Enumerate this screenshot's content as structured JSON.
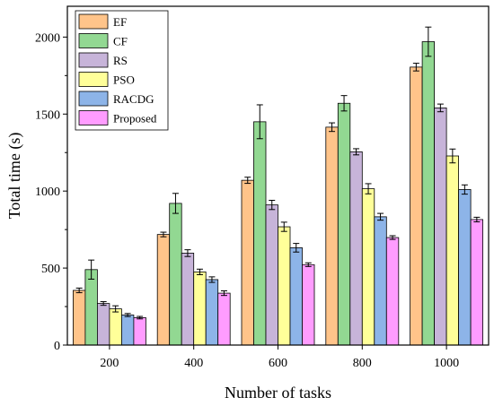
{
  "chart_data": {
    "type": "bar",
    "title": "",
    "xlabel": "Number of tasks",
    "ylabel": "Total time (s)",
    "ylim": [
      0,
      2200
    ],
    "yticks": [
      0,
      500,
      1000,
      1500,
      2000
    ],
    "categories": [
      "200",
      "400",
      "600",
      "800",
      "1000"
    ],
    "grid": false,
    "legend_position": "top-left",
    "series": [
      {
        "name": "EF",
        "color": "#FFC48A",
        "values": [
          355,
          718,
          1070,
          1415,
          1805
        ],
        "errors": [
          15,
          15,
          20,
          28,
          25
        ]
      },
      {
        "name": "CF",
        "color": "#92D892",
        "values": [
          490,
          920,
          1450,
          1570,
          1970
        ],
        "errors": [
          62,
          65,
          110,
          50,
          95
        ]
      },
      {
        "name": "RS",
        "color": "#C7B4D9",
        "values": [
          270,
          597,
          910,
          1255,
          1540
        ],
        "errors": [
          12,
          22,
          30,
          20,
          25
        ]
      },
      {
        "name": "PSO",
        "color": "#FFFF99",
        "values": [
          235,
          475,
          768,
          1015,
          1228
        ],
        "errors": [
          20,
          18,
          30,
          33,
          45
        ]
      },
      {
        "name": "RACDG",
        "color": "#8DB4E8",
        "values": [
          195,
          425,
          632,
          833,
          1010
        ],
        "errors": [
          10,
          18,
          28,
          22,
          30
        ]
      },
      {
        "name": "Proposed",
        "color": "#FF9CFF",
        "values": [
          178,
          337,
          522,
          698,
          815
        ],
        "errors": [
          8,
          15,
          12,
          12,
          15
        ]
      }
    ]
  }
}
